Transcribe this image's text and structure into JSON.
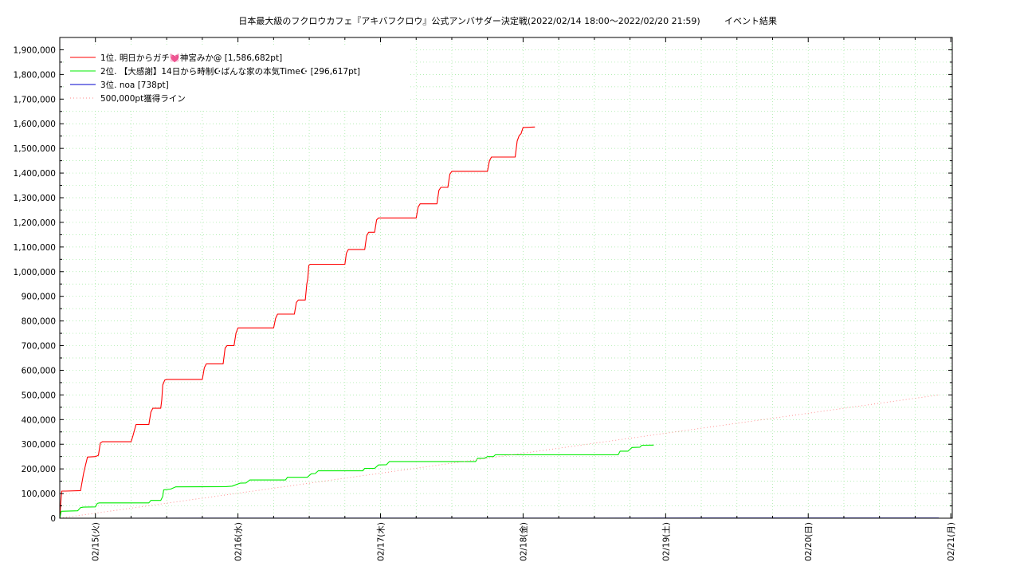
{
  "chart_data": {
    "type": "line",
    "title": "日本最大級のフクロウカフェ『アキバフクロウ』公式アンバサダー決定戦(2022/02/14 18:00～2022/02/20 21:59)",
    "subtitle": "イベント結果",
    "xlabel": "",
    "ylabel": "",
    "xlim": [
      "2022-02-14 18:00",
      "2022-02-21 00:15"
    ],
    "ylim": [
      0,
      1950000
    ],
    "ytick_step": 100000,
    "yticks": [
      "0",
      "100,000",
      "200,000",
      "300,000",
      "400,000",
      "500,000",
      "600,000",
      "700,000",
      "800,000",
      "900,000",
      "1,000,000",
      "1,100,000",
      "1,200,000",
      "1,300,000",
      "1,400,000",
      "1,500,000",
      "1,600,000",
      "1,700,000",
      "1,800,000",
      "1,900,000"
    ],
    "xticks": [
      {
        "label": "02/15(火)",
        "x": "2022-02-15 00:00"
      },
      {
        "label": "02/16(水)",
        "x": "2022-02-16 00:00"
      },
      {
        "label": "02/17(木)",
        "x": "2022-02-17 00:00"
      },
      {
        "label": "02/18(金)",
        "x": "2022-02-18 00:00"
      },
      {
        "label": "02/19(土)",
        "x": "2022-02-19 00:00"
      },
      {
        "label": "02/20(日)",
        "x": "2022-02-20 00:00"
      },
      {
        "label": "02/21(月)",
        "x": "2022-02-21 00:00"
      }
    ],
    "grid": true,
    "legend_position": "top-left",
    "series": [
      {
        "name": "1位. 明日からガチ💓神宮みか@ [1,586,682pt]",
        "color": "#ff0000",
        "style": "solid",
        "points": [
          [
            "2022-02-14 18:00",
            0
          ],
          [
            "2022-02-14 18:10",
            60000
          ],
          [
            "2022-02-14 18:20",
            110000
          ],
          [
            "2022-02-14 18:50",
            110000
          ],
          [
            "2022-02-14 19:00",
            110000
          ],
          [
            "2022-02-14 21:30",
            112000
          ],
          [
            "2022-02-14 22:00",
            180000
          ],
          [
            "2022-02-14 22:20",
            215000
          ],
          [
            "2022-02-14 22:40",
            248000
          ],
          [
            "2022-02-15 00:00",
            250000
          ],
          [
            "2022-02-15 00:30",
            255000
          ],
          [
            "2022-02-15 00:50",
            305000
          ],
          [
            "2022-02-15 01:10",
            310000
          ],
          [
            "2022-02-15 06:00",
            310000
          ],
          [
            "2022-02-15 06:20",
            335000
          ],
          [
            "2022-02-15 06:50",
            380000
          ],
          [
            "2022-02-15 09:00",
            380000
          ],
          [
            "2022-02-15 09:20",
            430000
          ],
          [
            "2022-02-15 09:40",
            446000
          ],
          [
            "2022-02-15 11:00",
            446000
          ],
          [
            "2022-02-15 11:10",
            480000
          ],
          [
            "2022-02-15 11:20",
            540000
          ],
          [
            "2022-02-15 11:40",
            560000
          ],
          [
            "2022-02-15 12:00",
            563000
          ],
          [
            "2022-02-15 18:00",
            563000
          ],
          [
            "2022-02-15 18:20",
            610000
          ],
          [
            "2022-02-15 18:40",
            626000
          ],
          [
            "2022-02-15 21:30",
            626000
          ],
          [
            "2022-02-15 21:50",
            690000
          ],
          [
            "2022-02-15 22:10",
            700000
          ],
          [
            "2022-02-15 23:20",
            700000
          ],
          [
            "2022-02-15 23:40",
            750000
          ],
          [
            "2022-02-16 00:00",
            772000
          ],
          [
            "2022-02-16 06:00",
            772000
          ],
          [
            "2022-02-16 06:20",
            810000
          ],
          [
            "2022-02-16 06:40",
            828000
          ],
          [
            "2022-02-16 09:30",
            828000
          ],
          [
            "2022-02-16 09:50",
            875000
          ],
          [
            "2022-02-16 10:10",
            885000
          ],
          [
            "2022-02-16 11:20",
            885000
          ],
          [
            "2022-02-16 11:35",
            950000
          ],
          [
            "2022-02-16 11:45",
            970000
          ],
          [
            "2022-02-16 11:55",
            1025000
          ],
          [
            "2022-02-16 12:10",
            1030000
          ],
          [
            "2022-02-16 18:00",
            1030000
          ],
          [
            "2022-02-16 18:15",
            1075000
          ],
          [
            "2022-02-16 18:35",
            1090000
          ],
          [
            "2022-02-16 21:20",
            1090000
          ],
          [
            "2022-02-16 21:40",
            1145000
          ],
          [
            "2022-02-16 22:00",
            1160000
          ],
          [
            "2022-02-16 23:00",
            1160000
          ],
          [
            "2022-02-16 23:20",
            1210000
          ],
          [
            "2022-02-16 23:40",
            1218000
          ],
          [
            "2022-02-17 06:00",
            1218000
          ],
          [
            "2022-02-17 06:20",
            1262000
          ],
          [
            "2022-02-17 06:40",
            1275000
          ],
          [
            "2022-02-17 09:30",
            1275000
          ],
          [
            "2022-02-17 09:50",
            1330000
          ],
          [
            "2022-02-17 10:10",
            1342000
          ],
          [
            "2022-02-17 11:20",
            1342000
          ],
          [
            "2022-02-17 11:40",
            1395000
          ],
          [
            "2022-02-17 12:00",
            1407000
          ],
          [
            "2022-02-17 18:00",
            1407000
          ],
          [
            "2022-02-17 18:20",
            1450000
          ],
          [
            "2022-02-17 18:40",
            1465000
          ],
          [
            "2022-02-17 22:40",
            1465000
          ],
          [
            "2022-02-17 23:00",
            1530000
          ],
          [
            "2022-02-17 23:20",
            1552000
          ],
          [
            "2022-02-17 23:40",
            1560000
          ],
          [
            "2022-02-18 00:00",
            1585000
          ],
          [
            "2022-02-18 02:00",
            1586682
          ]
        ]
      },
      {
        "name": "2位. 【大感謝】14日から時制☪ばんな家の本気Time☪ [296,617pt]",
        "color": "#00ee00",
        "style": "solid",
        "points": [
          [
            "2022-02-14 18:00",
            0
          ],
          [
            "2022-02-14 18:15",
            28000
          ],
          [
            "2022-02-14 21:00",
            30000
          ],
          [
            "2022-02-14 21:30",
            43000
          ],
          [
            "2022-02-14 22:00",
            45000
          ],
          [
            "2022-02-15 00:00",
            46000
          ],
          [
            "2022-02-15 00:20",
            60000
          ],
          [
            "2022-02-15 00:40",
            62000
          ],
          [
            "2022-02-15 09:00",
            62000
          ],
          [
            "2022-02-15 09:20",
            72000
          ],
          [
            "2022-02-15 11:00",
            72000
          ],
          [
            "2022-02-15 11:20",
            88000
          ],
          [
            "2022-02-15 11:30",
            115000
          ],
          [
            "2022-02-15 12:40",
            118000
          ],
          [
            "2022-02-15 13:30",
            127000
          ],
          [
            "2022-02-15 22:00",
            128000
          ],
          [
            "2022-02-15 23:00",
            130000
          ],
          [
            "2022-02-16 00:20",
            142000
          ],
          [
            "2022-02-16 01:20",
            143000
          ],
          [
            "2022-02-16 02:00",
            155000
          ],
          [
            "2022-02-16 08:00",
            155000
          ],
          [
            "2022-02-16 08:20",
            166000
          ],
          [
            "2022-02-16 11:40",
            166000
          ],
          [
            "2022-02-16 12:20",
            180000
          ],
          [
            "2022-02-16 13:00",
            181000
          ],
          [
            "2022-02-16 13:30",
            192000
          ],
          [
            "2022-02-16 21:00",
            192000
          ],
          [
            "2022-02-16 21:20",
            202000
          ],
          [
            "2022-02-16 23:00",
            202000
          ],
          [
            "2022-02-16 23:40",
            216000
          ],
          [
            "2022-02-17 01:00",
            217000
          ],
          [
            "2022-02-17 01:30",
            230000
          ],
          [
            "2022-02-17 16:00",
            230000
          ],
          [
            "2022-02-17 16:20",
            243000
          ],
          [
            "2022-02-17 17:30",
            243000
          ],
          [
            "2022-02-17 18:00",
            250000
          ],
          [
            "2022-02-17 19:00",
            250000
          ],
          [
            "2022-02-17 19:20",
            257000
          ],
          [
            "2022-02-18 16:00",
            257000
          ],
          [
            "2022-02-18 16:20",
            272000
          ],
          [
            "2022-02-18 17:40",
            272000
          ],
          [
            "2022-02-18 18:20",
            287000
          ],
          [
            "2022-02-18 19:40",
            288000
          ],
          [
            "2022-02-18 20:00",
            296000
          ],
          [
            "2022-02-18 22:00",
            296617
          ]
        ]
      },
      {
        "name": "3位. noa [738pt]",
        "color": "#0000cc",
        "style": "solid",
        "points": [
          [
            "2022-02-14 18:00",
            0
          ],
          [
            "2022-02-20 21:59",
            738
          ]
        ]
      },
      {
        "name": "500,000pt獲得ライン",
        "color": "#ff8888",
        "style": "dotted",
        "points": [
          [
            "2022-02-14 18:00",
            0
          ],
          [
            "2022-02-20 21:59",
            500000
          ]
        ]
      }
    ]
  }
}
